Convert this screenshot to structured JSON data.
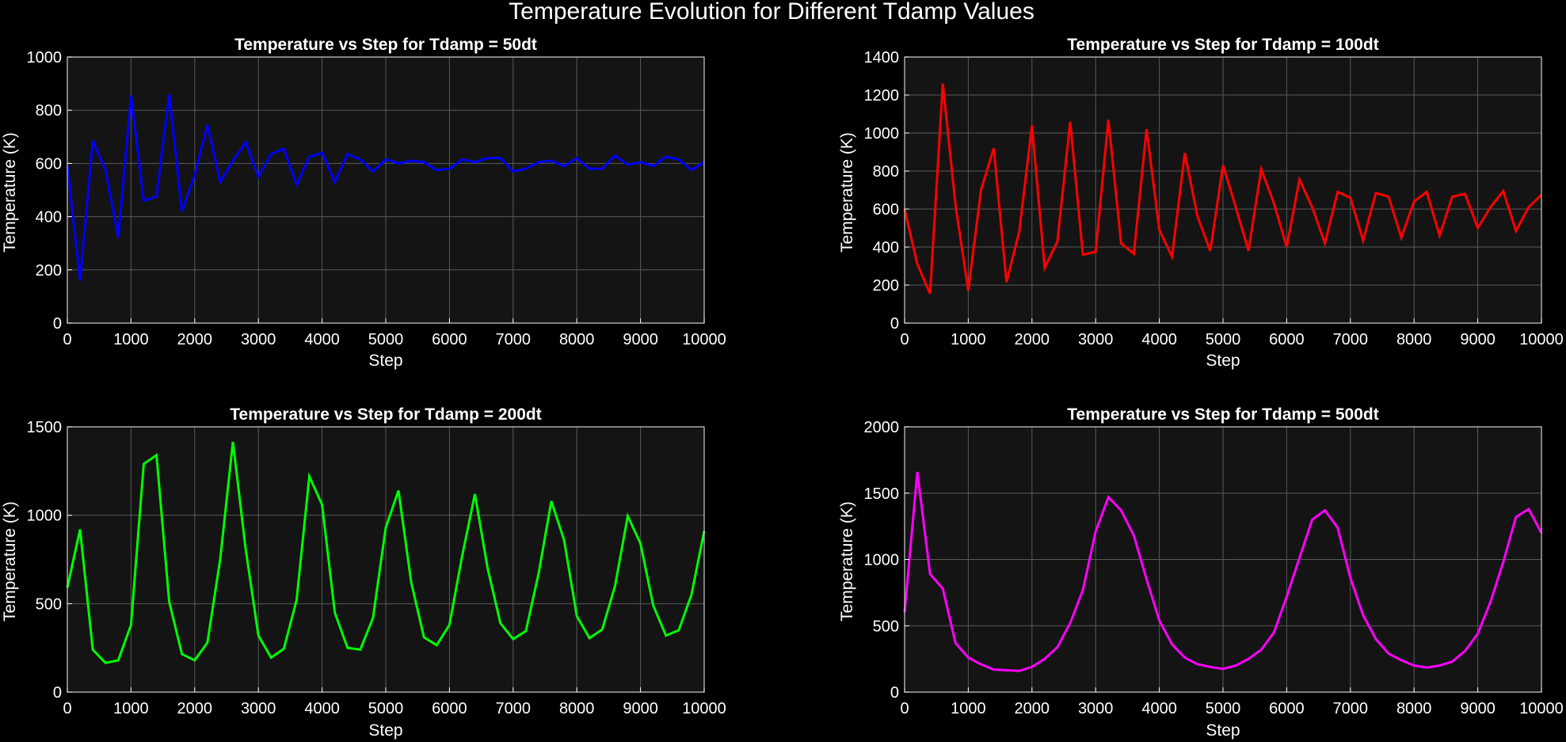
{
  "figure": {
    "suptitle": "Temperature Evolution for Different Tdamp Values",
    "background": "#000000",
    "axes_background": "#141414",
    "grid_color": "#5a5a5a",
    "text_color": "#ffffff"
  },
  "chart_data": [
    {
      "type": "line",
      "title": "Temperature vs Step for Tdamp = 50dt",
      "xlabel": "Step",
      "ylabel": "Temperature (K)",
      "xlim": [
        0,
        10000
      ],
      "ylim": [
        0,
        1000
      ],
      "xticks": [
        0,
        1000,
        2000,
        3000,
        4000,
        5000,
        6000,
        7000,
        8000,
        9000,
        10000
      ],
      "yticks": [
        0,
        200,
        400,
        600,
        800,
        1000
      ],
      "grid": true,
      "color": "#0000ff",
      "x": [
        0,
        200,
        400,
        600,
        800,
        1000,
        1200,
        1400,
        1600,
        1800,
        2000,
        2200,
        2400,
        2600,
        2800,
        3000,
        3200,
        3400,
        3600,
        3800,
        4000,
        4200,
        4400,
        4600,
        4800,
        5000,
        5200,
        5400,
        5600,
        5800,
        6000,
        6200,
        6400,
        6600,
        6800,
        7000,
        7200,
        7400,
        7600,
        7800,
        8000,
        8200,
        8400,
        8600,
        8800,
        9000,
        9200,
        9400,
        9600,
        9800,
        10000
      ],
      "y": [
        590,
        160,
        685,
        575,
        320,
        855,
        460,
        475,
        860,
        420,
        555,
        745,
        530,
        610,
        680,
        550,
        635,
        655,
        520,
        625,
        640,
        530,
        635,
        615,
        570,
        615,
        600,
        610,
        605,
        575,
        580,
        615,
        605,
        620,
        620,
        570,
        580,
        605,
        610,
        590,
        620,
        580,
        580,
        630,
        595,
        605,
        590,
        625,
        615,
        575,
        605
      ]
    },
    {
      "type": "line",
      "title": "Temperature vs Step for Tdamp = 100dt",
      "xlabel": "Step",
      "ylabel": "Temperature (K)",
      "xlim": [
        0,
        10000
      ],
      "ylim": [
        0,
        1400
      ],
      "xticks": [
        0,
        1000,
        2000,
        3000,
        4000,
        5000,
        6000,
        7000,
        8000,
        9000,
        10000
      ],
      "yticks": [
        0,
        200,
        400,
        600,
        800,
        1000,
        1200,
        1400
      ],
      "grid": true,
      "color": "#ff0000",
      "x": [
        0,
        200,
        400,
        600,
        800,
        1000,
        1200,
        1400,
        1600,
        1800,
        2000,
        2200,
        2400,
        2600,
        2800,
        3000,
        3200,
        3400,
        3600,
        3800,
        4000,
        4200,
        4400,
        4600,
        4800,
        5000,
        5200,
        5400,
        5600,
        5800,
        6000,
        6200,
        6400,
        6600,
        6800,
        7000,
        7200,
        7400,
        7600,
        7800,
        8000,
        8200,
        8400,
        8600,
        8800,
        9000,
        9200,
        9400,
        9600,
        9800,
        10000
      ],
      "y": [
        600,
        310,
        155,
        1260,
        620,
        170,
        700,
        920,
        215,
        480,
        1040,
        290,
        430,
        1060,
        360,
        375,
        1070,
        420,
        365,
        1020,
        490,
        350,
        895,
        560,
        380,
        830,
        610,
        380,
        810,
        630,
        400,
        755,
        610,
        420,
        690,
        660,
        435,
        685,
        665,
        450,
        640,
        690,
        460,
        665,
        680,
        500,
        610,
        695,
        485,
        610,
        675
      ]
    },
    {
      "type": "line",
      "title": "Temperature vs Step for Tdamp = 200dt",
      "xlabel": "Step",
      "ylabel": "Temperature (K)",
      "xlim": [
        0,
        10000
      ],
      "ylim": [
        0,
        1500
      ],
      "xticks": [
        0,
        1000,
        2000,
        3000,
        4000,
        5000,
        6000,
        7000,
        8000,
        9000,
        10000
      ],
      "yticks": [
        0,
        500,
        1000,
        1500
      ],
      "grid": true,
      "color": "#00ff00",
      "x": [
        0,
        200,
        400,
        600,
        800,
        1000,
        1200,
        1400,
        1600,
        1800,
        2000,
        2200,
        2400,
        2600,
        2800,
        3000,
        3200,
        3400,
        3600,
        3800,
        4000,
        4200,
        4400,
        4600,
        4800,
        5000,
        5200,
        5400,
        5600,
        5800,
        6000,
        6200,
        6400,
        6600,
        6800,
        7000,
        7200,
        7400,
        7600,
        7800,
        8000,
        8200,
        8400,
        8600,
        8800,
        9000,
        9200,
        9400,
        9600,
        9800,
        10000
      ],
      "y": [
        590,
        920,
        240,
        165,
        180,
        380,
        1290,
        1340,
        510,
        215,
        180,
        280,
        750,
        1415,
        810,
        320,
        195,
        245,
        520,
        1220,
        1060,
        450,
        250,
        240,
        420,
        930,
        1140,
        620,
        310,
        265,
        380,
        770,
        1120,
        700,
        390,
        300,
        345,
        670,
        1080,
        860,
        430,
        305,
        355,
        600,
        995,
        840,
        490,
        320,
        350,
        550,
        910
      ]
    },
    {
      "type": "line",
      "title": "Temperature vs Step for Tdamp = 500dt",
      "xlabel": "Step",
      "ylabel": "Temperature (K)",
      "xlim": [
        0,
        10000
      ],
      "ylim": [
        0,
        2000
      ],
      "xticks": [
        0,
        1000,
        2000,
        3000,
        4000,
        5000,
        6000,
        7000,
        8000,
        9000,
        10000
      ],
      "yticks": [
        0,
        500,
        1000,
        1500,
        2000
      ],
      "grid": true,
      "color": "#ff00ff",
      "x": [
        0,
        200,
        400,
        600,
        800,
        1000,
        1200,
        1400,
        1600,
        1800,
        2000,
        2200,
        2400,
        2600,
        2800,
        3000,
        3200,
        3400,
        3600,
        3800,
        4000,
        4200,
        4400,
        4600,
        4800,
        5000,
        5200,
        5400,
        5600,
        5800,
        6000,
        6200,
        6400,
        6600,
        6800,
        7000,
        7200,
        7400,
        7600,
        7800,
        8000,
        8200,
        8400,
        8600,
        8800,
        9000,
        9200,
        9400,
        9600,
        9800,
        10000
      ],
      "y": [
        600,
        1660,
        890,
        780,
        370,
        260,
        210,
        170,
        165,
        160,
        190,
        250,
        340,
        520,
        770,
        1210,
        1470,
        1370,
        1180,
        850,
        540,
        360,
        260,
        210,
        190,
        175,
        200,
        250,
        320,
        450,
        720,
        1010,
        1300,
        1370,
        1240,
        860,
        580,
        400,
        290,
        240,
        200,
        185,
        200,
        230,
        310,
        440,
        680,
        980,
        1320,
        1380,
        1200
      ]
    }
  ]
}
